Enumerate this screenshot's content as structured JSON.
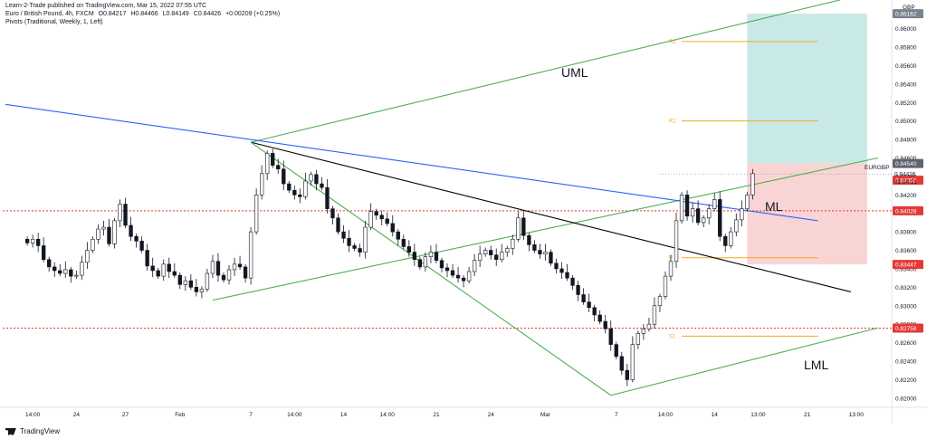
{
  "header": {
    "publisher": "Learn-2-Trade published on TradingView.com, Mar 15, 2022 07:55 UTC",
    "symbol": "Euro / British Pound, 4h, FXCM",
    "o": "O0.84217",
    "h": "H0.84466",
    "l": "L0.84149",
    "c": "C0.84426",
    "change": "+0.00209 (+0.25%)",
    "pivots": "Pivots (Traditional, Weekly, 1, Left)"
  },
  "footer": {
    "logo_text": "TradingView"
  },
  "annotations": {
    "uml": "UML",
    "ml": "ML",
    "lml": "LML"
  },
  "colors": {
    "up": "#ffffff",
    "down": "#131722",
    "blue_line": "#2962ff",
    "green_line": "#4caf50",
    "black_line": "#000000",
    "red_dotted": "#e53935",
    "pivot_orange": "#f5a623",
    "tp_zone": "#b2dfdb",
    "sl_zone": "#f8c9c9"
  },
  "chart_data": {
    "type": "candlestick",
    "currency": "GBP",
    "symbol_label": "EURGBP",
    "ylim": [
      0.819,
      0.8631
    ],
    "yticks": [
      "0.86000",
      "0.85800",
      "0.85600",
      "0.85400",
      "0.85200",
      "0.85000",
      "0.84800",
      "0.84600",
      "0.84400",
      "0.84200",
      "0.84000",
      "0.83800",
      "0.83600",
      "0.83400",
      "0.83200",
      "0.83000",
      "0.82800",
      "0.82600",
      "0.82400",
      "0.82200",
      "0.82000"
    ],
    "xticks": [
      {
        "label": "14:00",
        "i": 5
      },
      {
        "label": "24",
        "i": 13
      },
      {
        "label": "27",
        "i": 22
      },
      {
        "label": "Feb",
        "i": 32
      },
      {
        "label": "7",
        "i": 45
      },
      {
        "label": "14:00",
        "i": 53
      },
      {
        "label": "14",
        "i": 62
      },
      {
        "label": "14:00",
        "i": 70
      },
      {
        "label": "21",
        "i": 79
      },
      {
        "label": "24",
        "i": 89
      },
      {
        "label": "Mar",
        "i": 99
      },
      {
        "label": "7",
        "i": 112
      },
      {
        "label": "14:00",
        "i": 121
      },
      {
        "label": "14",
        "i": 130
      },
      {
        "label": "13:00",
        "i": 138
      },
      {
        "label": "21",
        "i": 147
      },
      {
        "label": "13:00",
        "i": 156
      }
    ],
    "n_slots": 163,
    "closes": [
      0.8368,
      0.8372,
      0.8365,
      0.835,
      0.8342,
      0.8338,
      0.8335,
      0.8339,
      0.8332,
      0.8333,
      0.8347,
      0.836,
      0.8372,
      0.8383,
      0.8385,
      0.8367,
      0.8392,
      0.841,
      0.8387,
      0.8375,
      0.837,
      0.836,
      0.8343,
      0.8338,
      0.8332,
      0.8345,
      0.8337,
      0.8333,
      0.8323,
      0.8327,
      0.832,
      0.8315,
      0.8318,
      0.8335,
      0.8348,
      0.8333,
      0.8328,
      0.8339,
      0.8345,
      0.8342,
      0.833,
      0.838,
      0.842,
      0.8443,
      0.8465,
      0.8452,
      0.8448,
      0.8432,
      0.8425,
      0.842,
      0.8418,
      0.8435,
      0.8442,
      0.8432,
      0.8428,
      0.8405,
      0.8395,
      0.838,
      0.8373,
      0.8365,
      0.8362,
      0.8358,
      0.8385,
      0.8402,
      0.8398,
      0.8394,
      0.8389,
      0.838,
      0.8372,
      0.8364,
      0.8358,
      0.835,
      0.8342,
      0.8353,
      0.8358,
      0.8349,
      0.8341,
      0.8338,
      0.8333,
      0.833,
      0.8327,
      0.8337,
      0.8349,
      0.8356,
      0.836,
      0.8355,
      0.835,
      0.8358,
      0.8362,
      0.8372,
      0.8395,
      0.8376,
      0.8366,
      0.836,
      0.8356,
      0.8358,
      0.8346,
      0.834,
      0.8336,
      0.833,
      0.8322,
      0.8312,
      0.8304,
      0.8298,
      0.829,
      0.8283,
      0.8275,
      0.8258,
      0.8245,
      0.823,
      0.822,
      0.8258,
      0.827,
      0.8275,
      0.828,
      0.83,
      0.831,
      0.8332,
      0.8348,
      0.8392,
      0.842,
      0.8397,
      0.8405,
      0.839,
      0.8395,
      0.8405,
      0.8415,
      0.8375,
      0.8365,
      0.838,
      0.8393,
      0.8405,
      0.842,
      0.8443
    ],
    "candle_count": 133,
    "lines": [
      {
        "name": "UML",
        "from": {
          "i": 45,
          "y": 0.8477
        },
        "to": {
          "i": 153,
          "y": 0.8631
        }
      },
      {
        "name": "ML",
        "from": {
          "i": 38,
          "y": 0.8306
        },
        "to": {
          "i": 160,
          "y": 0.846
        }
      },
      {
        "name": "LML",
        "from": {
          "i": 111,
          "y": 0.8203
        },
        "to": {
          "i": 160,
          "y": 0.8276
        }
      },
      {
        "name": "blue trendline",
        "from": {
          "i": 0,
          "y": 0.8518
        },
        "to": {
          "i": 149,
          "y": 0.8392
        }
      },
      {
        "name": "black trendline",
        "from": {
          "i": 45,
          "y": 0.8477
        },
        "to": {
          "i": 155,
          "y": 0.8315
        }
      },
      {
        "name": "green fork left",
        "from": {
          "i": 45,
          "y": 0.8477
        },
        "to": {
          "i": 111,
          "y": 0.8203
        }
      }
    ],
    "pivots": [
      {
        "label": "R2",
        "value": 0.8586
      },
      {
        "label": "R1",
        "value": 0.85
      },
      {
        "label": "P",
        "value": 0.8352
      },
      {
        "label": "S1",
        "value": 0.8267
      }
    ],
    "levels": [
      {
        "value": 0.84028,
        "label": "0.84028",
        "color": "#e53935"
      },
      {
        "value": 0.82758,
        "label": "0.82758",
        "color": "#e53935"
      }
    ],
    "position": {
      "entry": 0.8454,
      "entry_label": "0.84540",
      "target": 0.86162,
      "target_label": "0.86162",
      "stop": 0.83447,
      "stop_label": "0.83447",
      "start_i": 136,
      "end_i": 158
    },
    "last_price": {
      "value": 0.84426,
      "label": "0.84426",
      "countdown": "01:04:21"
    },
    "other_label": {
      "value": 0.84358,
      "label": "0.84358"
    }
  }
}
